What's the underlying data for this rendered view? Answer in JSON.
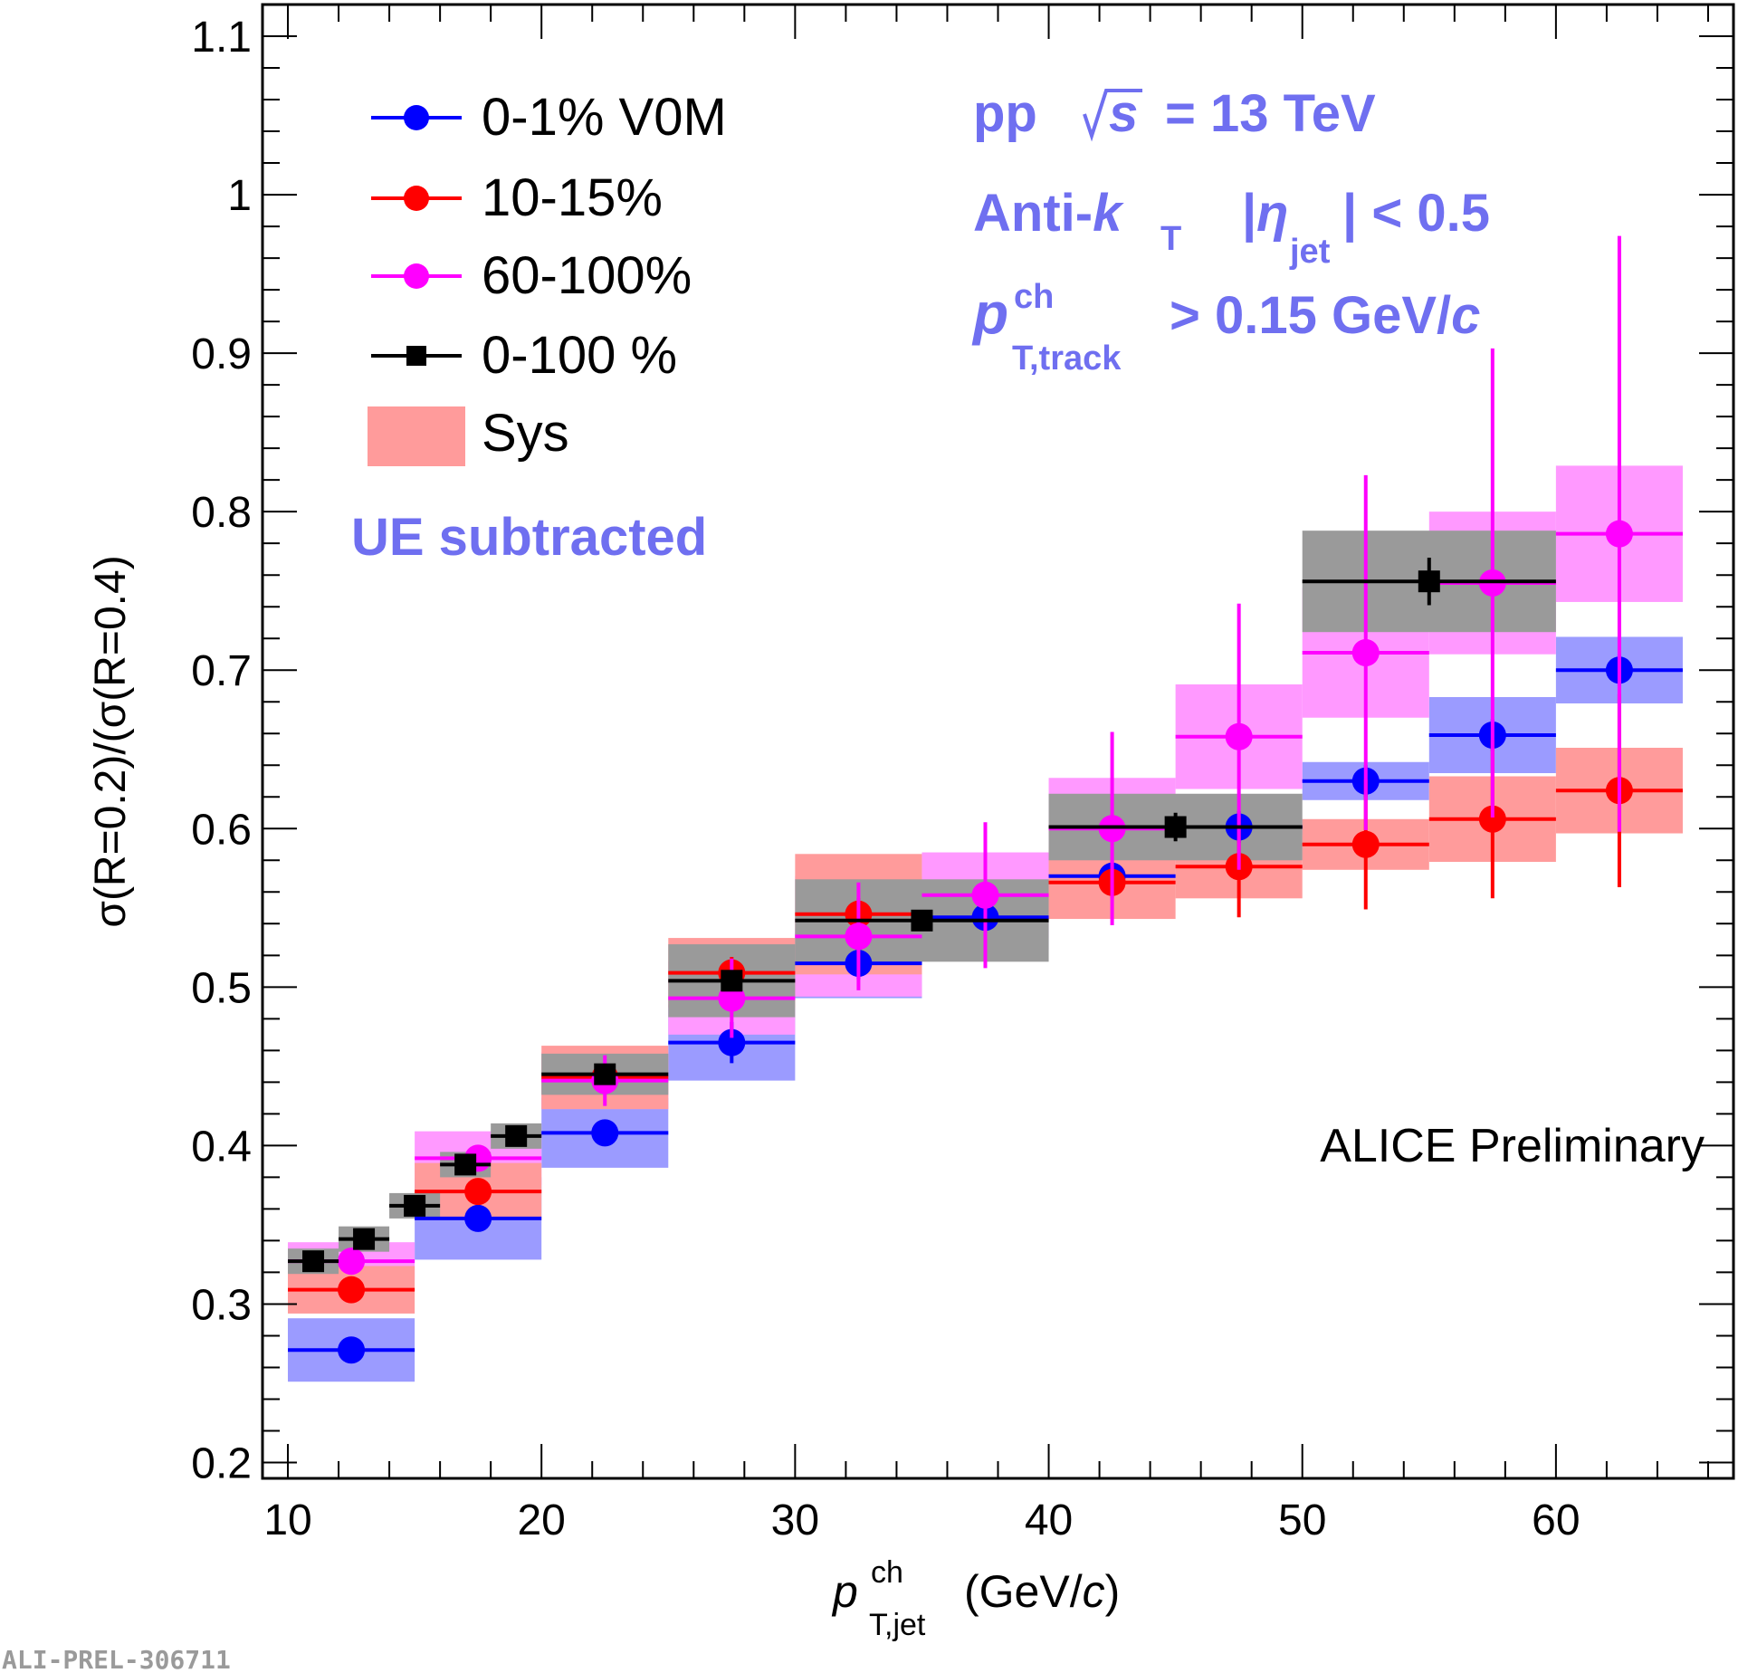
{
  "chart_data": {
    "type": "scatter",
    "xlim": [
      9,
      67
    ],
    "ylim": [
      0.19,
      1.12
    ],
    "x_ticks": [
      10,
      20,
      30,
      40,
      50,
      60
    ],
    "x_tick_labels": [
      "10",
      "20",
      "30",
      "40",
      "50",
      "60"
    ],
    "y_ticks": [
      0.2,
      0.3,
      0.4,
      0.5,
      0.6,
      0.7,
      0.8,
      0.9,
      1.0,
      1.1
    ],
    "y_tick_labels": [
      "0.2",
      "0.3",
      "0.4",
      "0.5",
      "0.6",
      "0.7",
      "0.8",
      "0.9",
      "1",
      "1.1"
    ],
    "ylabel": "σ(R=0.2)/(σ(R=0.4)",
    "xlabel": {
      "var": "p",
      "sup": "ch",
      "sub": "T,jet",
      "unit_open": "(GeV/",
      "unit_c": "c",
      "unit_close": ")"
    },
    "legend": [
      {
        "label": "0-1% V0M",
        "series": "v0m_0_1",
        "marker": "circle"
      },
      {
        "label": "10-15%",
        "series": "v0m_10_15",
        "marker": "circle"
      },
      {
        "label": "60-100%",
        "series": "v0m_60_100",
        "marker": "circle"
      },
      {
        "label": "0-100 %",
        "series": "v0m_0_100",
        "marker": "square"
      },
      {
        "label": "Sys",
        "series": "sys",
        "marker": "box"
      }
    ],
    "annotations": {
      "system": {
        "pp": "pp",
        "sqrt_s": "s",
        "energy": "= 13 TeV"
      },
      "algo": {
        "antikt": "Anti-",
        "k": "k",
        "k_sub": "T",
        "eta_open": "|",
        "eta": "η",
        "eta_sub": "jet",
        "eta_close": "| < 0.5"
      },
      "track": {
        "p": "p",
        "sup": "ch",
        "sub": "T,track",
        "cut": "> 0.15 GeV/",
        "c": "c"
      },
      "ue": "UE subtracted",
      "preliminary": "ALICE Preliminary",
      "figure_id": "ALI-PREL-306711"
    },
    "series": [
      {
        "name": "0-1% V0M",
        "key": "v0m_0_1",
        "color": "#0000ff",
        "sys_color": "#9b9bff",
        "marker": "circle",
        "points": [
          {
            "x": 12.5,
            "xlo": 10,
            "xhi": 15,
            "y": 0.271,
            "stat": 0.004,
            "sys": 0.02
          },
          {
            "x": 17.5,
            "xlo": 15,
            "xhi": 20,
            "y": 0.354,
            "stat": 0.005,
            "sys": 0.026
          },
          {
            "x": 22.5,
            "xlo": 20,
            "xhi": 25,
            "y": 0.408,
            "stat": 0.006,
            "sys": 0.022
          },
          {
            "x": 27.5,
            "xlo": 25,
            "xhi": 30,
            "y": 0.465,
            "stat": 0.013,
            "sys": 0.024
          },
          {
            "x": 32.5,
            "xlo": 30,
            "xhi": 35,
            "y": 0.515,
            "stat": 0.01,
            "sys": 0.022
          },
          {
            "x": 37.5,
            "xlo": 35,
            "xhi": 40,
            "y": 0.544,
            "stat": 0.01,
            "sys": 0.02
          },
          {
            "x": 42.5,
            "xlo": 40,
            "xhi": 45,
            "y": 0.57,
            "stat": 0.01,
            "sys": 0.005
          },
          {
            "x": 47.5,
            "xlo": 45,
            "xhi": 50,
            "y": 0.601,
            "stat": 0.01,
            "sys": 0.005
          },
          {
            "x": 52.5,
            "xlo": 50,
            "xhi": 55,
            "y": 0.63,
            "stat": 0.01,
            "sys": 0.012
          },
          {
            "x": 57.5,
            "xlo": 55,
            "xhi": 60,
            "y": 0.659,
            "stat": 0.01,
            "sys": 0.024
          },
          {
            "x": 62.5,
            "xlo": 60,
            "xhi": 65,
            "y": 0.7,
            "stat": 0.01,
            "sys": 0.021
          }
        ]
      },
      {
        "name": "10-15%",
        "key": "v0m_10_15",
        "color": "#ff0000",
        "sys_color": "#ff9b9b",
        "marker": "circle",
        "points": [
          {
            "x": 12.5,
            "xlo": 10,
            "xhi": 15,
            "y": 0.309,
            "stat": 0.004,
            "sys": 0.015
          },
          {
            "x": 17.5,
            "xlo": 15,
            "xhi": 20,
            "y": 0.371,
            "stat": 0.005,
            "sys": 0.018
          },
          {
            "x": 22.5,
            "xlo": 20,
            "xhi": 25,
            "y": 0.443,
            "stat": 0.006,
            "sys": 0.02
          },
          {
            "x": 27.5,
            "xlo": 25,
            "xhi": 30,
            "y": 0.509,
            "stat": 0.01,
            "sys": 0.022
          },
          {
            "x": 32.5,
            "xlo": 30,
            "xhi": 35,
            "y": 0.546,
            "stat": 0.01,
            "sys": 0.038
          },
          {
            "x": 42.5,
            "xlo": 40,
            "xhi": 45,
            "y": 0.566,
            "stat": 0.01,
            "sys": 0.023
          },
          {
            "x": 47.5,
            "xlo": 45,
            "xhi": 50,
            "y": 0.576,
            "stat": 0.032,
            "sys": 0.02
          },
          {
            "x": 52.5,
            "xlo": 50,
            "xhi": 55,
            "y": 0.59,
            "stat": 0.041,
            "sys": 0.016
          },
          {
            "x": 57.5,
            "xlo": 55,
            "xhi": 60,
            "y": 0.606,
            "stat": 0.05,
            "sys": 0.027
          },
          {
            "x": 62.5,
            "xlo": 60,
            "xhi": 65,
            "y": 0.624,
            "stat": 0.061,
            "sys": 0.027
          }
        ]
      },
      {
        "name": "60-100%",
        "key": "v0m_60_100",
        "color": "#ff00ff",
        "sys_color": "#ff99ff",
        "marker": "circle",
        "points": [
          {
            "x": 12.5,
            "xlo": 10,
            "xhi": 15,
            "y": 0.327,
            "stat": 0.004,
            "sys": 0.012
          },
          {
            "x": 17.5,
            "xlo": 15,
            "xhi": 20,
            "y": 0.392,
            "stat": 0.007,
            "sys": 0.017
          },
          {
            "x": 22.5,
            "xlo": 20,
            "xhi": 25,
            "y": 0.441,
            "stat": 0.016,
            "sys": 0.018
          },
          {
            "x": 27.5,
            "xlo": 25,
            "xhi": 30,
            "y": 0.493,
            "stat": 0.025,
            "sys": 0.023
          },
          {
            "x": 32.5,
            "xlo": 30,
            "xhi": 35,
            "y": 0.532,
            "stat": 0.034,
            "sys": 0.038
          },
          {
            "x": 37.5,
            "xlo": 35,
            "xhi": 40,
            "y": 0.558,
            "stat": 0.046,
            "sys": 0.027
          },
          {
            "x": 42.5,
            "xlo": 40,
            "xhi": 45,
            "y": 0.6,
            "stat": 0.061,
            "sys": 0.032
          },
          {
            "x": 47.5,
            "xlo": 45,
            "xhi": 50,
            "y": 0.658,
            "stat": 0.084,
            "sys": 0.033
          },
          {
            "x": 52.5,
            "xlo": 50,
            "xhi": 55,
            "y": 0.711,
            "stat": 0.112,
            "sys": 0.041
          },
          {
            "x": 57.5,
            "xlo": 55,
            "xhi": 60,
            "y": 0.755,
            "stat": 0.148,
            "sys": 0.045
          },
          {
            "x": 62.5,
            "xlo": 60,
            "xhi": 65,
            "y": 0.786,
            "stat": 0.188,
            "sys": 0.043
          }
        ]
      },
      {
        "name": "0-100 %",
        "key": "v0m_0_100",
        "color": "#000000",
        "sys_color": "#9a9a9a",
        "marker": "square",
        "points": [
          {
            "x": 11.0,
            "xlo": 10,
            "xhi": 12,
            "y": 0.327,
            "stat": 0.003,
            "sys": 0.008
          },
          {
            "x": 13.0,
            "xlo": 12,
            "xhi": 14,
            "y": 0.341,
            "stat": 0.003,
            "sys": 0.008
          },
          {
            "x": 15.0,
            "xlo": 14,
            "xhi": 16,
            "y": 0.362,
            "stat": 0.003,
            "sys": 0.008
          },
          {
            "x": 17.0,
            "xlo": 16,
            "xhi": 18,
            "y": 0.388,
            "stat": 0.003,
            "sys": 0.008
          },
          {
            "x": 19.0,
            "xlo": 18,
            "xhi": 20,
            "y": 0.406,
            "stat": 0.003,
            "sys": 0.008
          },
          {
            "x": 22.5,
            "xlo": 20,
            "xhi": 25,
            "y": 0.445,
            "stat": 0.004,
            "sys": 0.013
          },
          {
            "x": 27.5,
            "xlo": 25,
            "xhi": 30,
            "y": 0.504,
            "stat": 0.005,
            "sys": 0.023
          },
          {
            "x": 35.0,
            "xlo": 30,
            "xhi": 40,
            "y": 0.542,
            "stat": 0.006,
            "sys": 0.026
          },
          {
            "x": 45.0,
            "xlo": 40,
            "xhi": 50,
            "y": 0.601,
            "stat": 0.009,
            "sys": 0.021
          },
          {
            "x": 55.0,
            "xlo": 50,
            "xhi": 60,
            "y": 0.756,
            "stat": 0.015,
            "sys": 0.032
          }
        ]
      }
    ]
  }
}
